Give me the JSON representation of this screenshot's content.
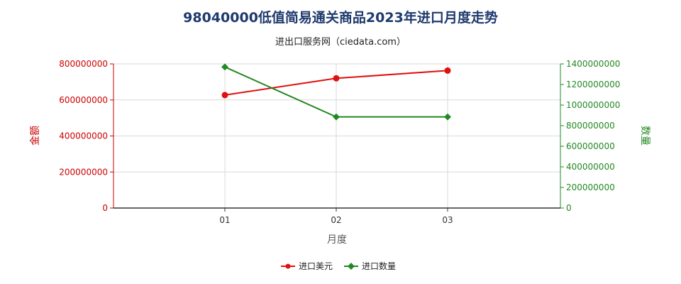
{
  "chart_data": {
    "type": "line",
    "title": "98040000低值简易通关商品2023年进口月度走势",
    "subtitle": "进出口服务网（ciedata.com）",
    "xlabel": "月度",
    "ylabel_left": "金额",
    "ylabel_right": "数量",
    "categories": [
      "01",
      "02",
      "03"
    ],
    "y_left": {
      "min": 0,
      "max": 800000000,
      "ticks": [
        "0",
        "200000000",
        "400000000",
        "600000000",
        "800000000"
      ],
      "color": "#e01010"
    },
    "y_right": {
      "min": 0,
      "max": 1400000000,
      "ticks": [
        "0",
        "200000000",
        "400000000",
        "600000000",
        "800000000",
        "1000000000",
        "1200000000",
        "1400000000"
      ],
      "color": "#228822"
    },
    "grid": true,
    "legend_position": "bottom-center",
    "series": [
      {
        "name": "进口美元",
        "axis": "left",
        "color": "#e01010",
        "values": [
          627000000,
          720000000,
          763000000
        ]
      },
      {
        "name": "进口数量",
        "axis": "right",
        "color": "#228822",
        "values": [
          1370000000,
          885000000,
          885000000
        ]
      }
    ]
  }
}
